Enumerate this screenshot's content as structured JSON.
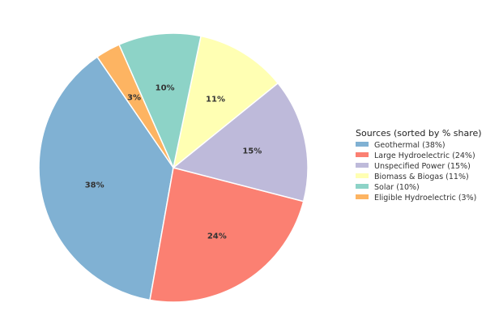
{
  "chart_data": {
    "type": "pie",
    "title": "",
    "categories": [
      "Geothermal",
      "Large Hydroelectric",
      "Unspecified Power",
      "Biomass & Biogas",
      "Solar",
      "Eligible Hydroelectric"
    ],
    "values": [
      38,
      24,
      15,
      11,
      10,
      3
    ],
    "value_labels": [
      "38%",
      "24%",
      "15%",
      "11%",
      "10%",
      "3%"
    ],
    "legend_labels": [
      "Geothermal (38%)",
      "Large Hydroelectric (24%)",
      "Unspecified Power (15%)",
      "Biomass & Biogas (11%)",
      "Solar (10%)",
      "Eligible Hydroelectric (3%)"
    ],
    "colors": [
      "#80b1d3",
      "#fb8072",
      "#bebada",
      "#ffffb3",
      "#8dd3c7",
      "#fdb462"
    ],
    "legend_title": "Sources (sorted by % share)",
    "legend_position": "right",
    "start_angle_degrees": 124.5,
    "direction": "counterclockwise"
  }
}
